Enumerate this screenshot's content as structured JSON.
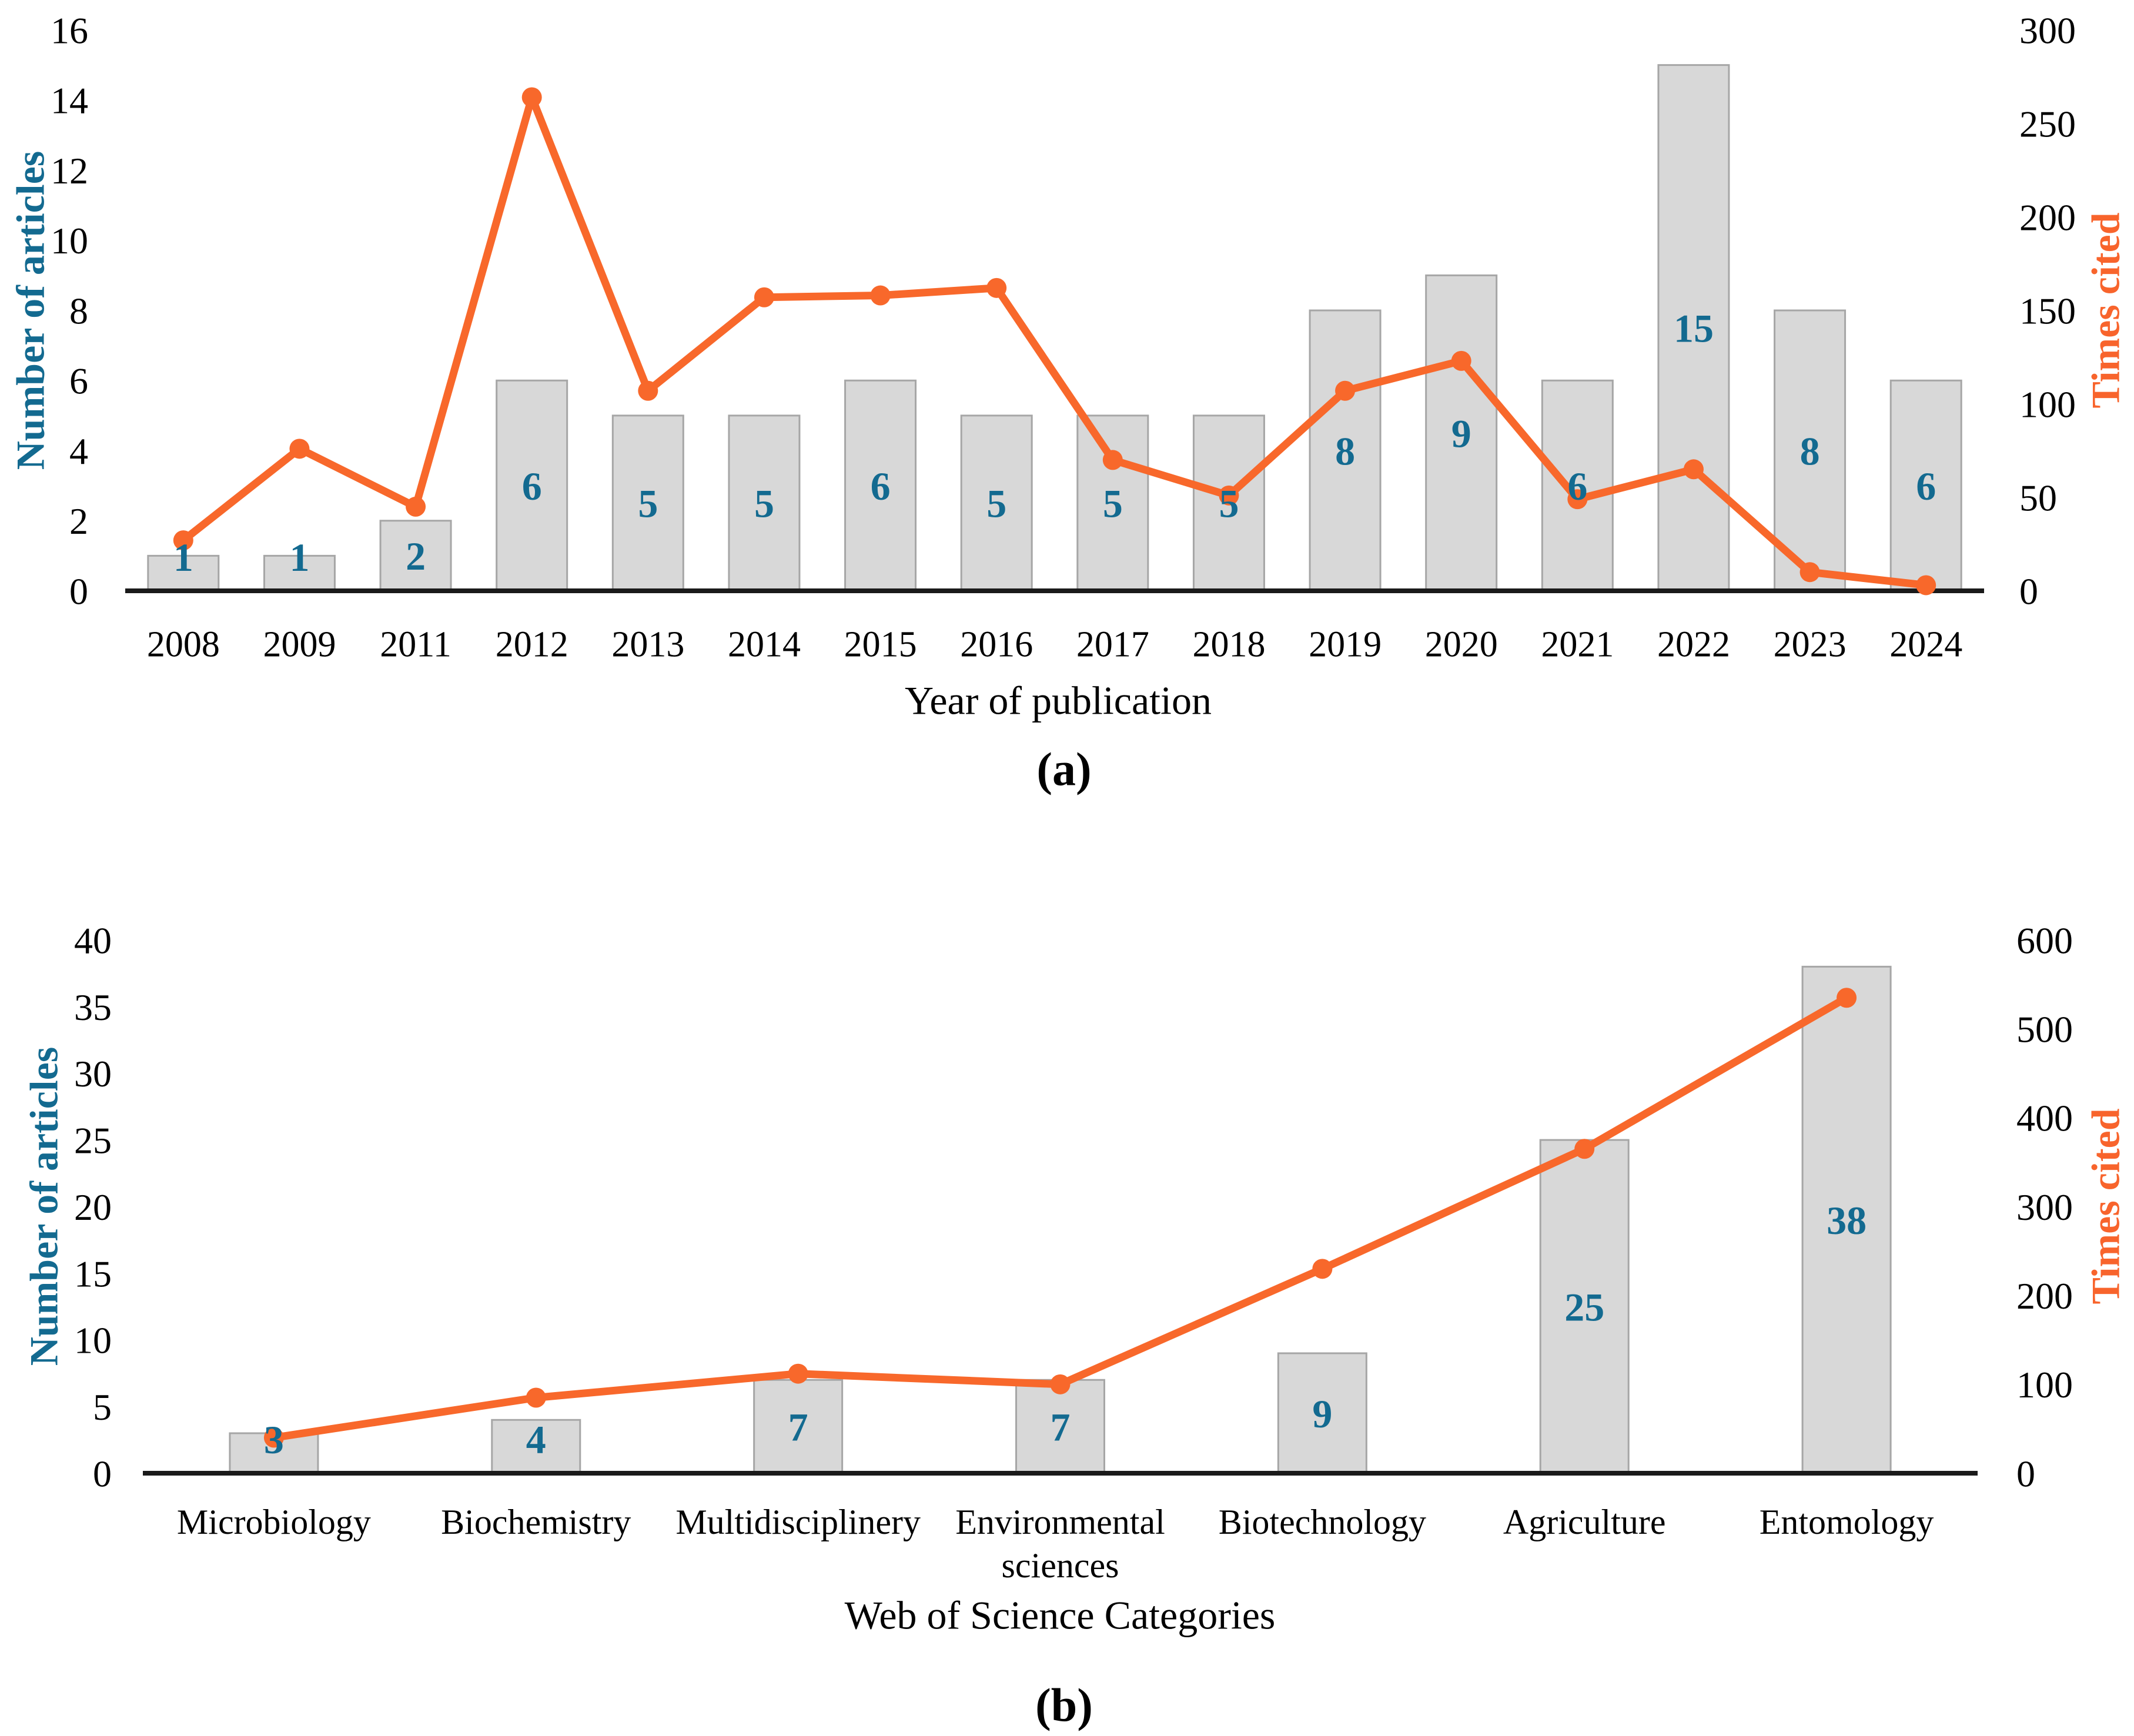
{
  "figure_background": "#ffffff",
  "colors": {
    "bar_fill": "#D8D8D8",
    "bar_stroke": "#A6A6A6",
    "line": "#F8682B",
    "bar_label": "#136A90",
    "left_axis_title": "#136A90",
    "right_axis_title": "#F8642C",
    "tick_text": "#000000",
    "axis_line": "#1A1A1A"
  },
  "chart_data": [
    {
      "id": "a",
      "type": "bar+line",
      "caption": "(a)",
      "xlabel": "Year of publication",
      "ylabel_left": "Number of articles",
      "ylabel_right": "Times cited",
      "ylim_left": [
        0,
        16
      ],
      "ytick_step_left": 2,
      "ylim_right": [
        0,
        300
      ],
      "ytick_step_right": 50,
      "grid": false,
      "legend": "none",
      "categories": [
        "2008",
        "2009",
        "2011",
        "2012",
        "2013",
        "2014",
        "2015",
        "2016",
        "2017",
        "2018",
        "2019",
        "2020",
        "2021",
        "2022",
        "2023",
        "2024"
      ],
      "series": [
        {
          "name": "Number of articles",
          "type": "bar",
          "axis": "left",
          "values": [
            1,
            1,
            2,
            6,
            5,
            5,
            6,
            5,
            5,
            5,
            8,
            9,
            6,
            15,
            8,
            6
          ],
          "labels_visible": true
        },
        {
          "name": "Times cited",
          "type": "line",
          "axis": "right",
          "values": [
            27,
            76,
            45,
            264,
            107,
            157,
            158,
            162,
            70,
            51,
            107,
            123,
            49,
            65,
            10,
            3
          ],
          "labels_visible": false
        }
      ]
    },
    {
      "id": "b",
      "type": "bar+line",
      "caption": "(b)",
      "xlabel": "Web of Science Categories",
      "ylabel_left": "Number of articles",
      "ylabel_right": "Times cited",
      "ylim_left": [
        0,
        40
      ],
      "ytick_step_left": 5,
      "ylim_right": [
        0,
        600
      ],
      "ytick_step_right": 100,
      "grid": false,
      "legend": "none",
      "categories": [
        "Microbiology",
        "Biochemistry",
        "Multidisciplinery",
        "Environmental\nsciences",
        "Biotechnology",
        "Agriculture",
        "Entomology"
      ],
      "series": [
        {
          "name": "Number of articles",
          "type": "bar",
          "axis": "left",
          "values": [
            3,
            4,
            7,
            7,
            9,
            25,
            38
          ],
          "labels_visible": true
        },
        {
          "name": "Times cited",
          "type": "line",
          "axis": "right",
          "values": [
            40,
            85,
            112,
            100,
            230,
            365,
            535
          ],
          "labels_visible": false
        }
      ]
    }
  ]
}
